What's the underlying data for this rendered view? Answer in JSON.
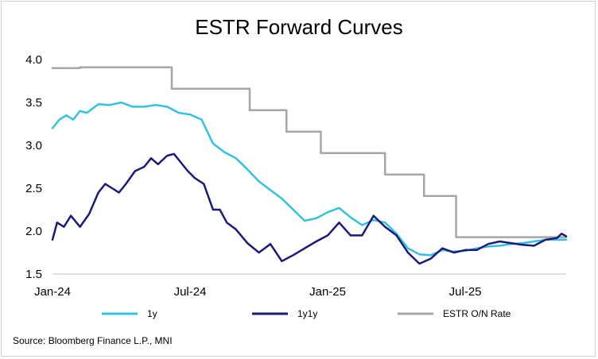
{
  "chart_data": {
    "type": "line",
    "title": "ESTR Forward Curves",
    "xlabel": "",
    "ylabel": "",
    "ylim": [
      1.5,
      4.0
    ],
    "y_ticks": [
      1.5,
      2.0,
      2.5,
      3.0,
      3.5,
      4.0
    ],
    "y_tick_labels": [
      "1.5",
      "2.0",
      "2.5",
      "3.0",
      "3.5",
      "4.0"
    ],
    "x_ticks": [
      0,
      6,
      12,
      18
    ],
    "x_tick_labels": [
      "Jan-24",
      "Jul-24",
      "Jan-25",
      "Jul-25"
    ],
    "xlim": [
      0,
      22.4
    ],
    "grid": false,
    "legend_position": "bottom",
    "source": "Source: Bloomberg Finance L.P., MNI",
    "series": [
      {
        "name": "1y",
        "color": "#33c1e1",
        "x": [
          0,
          0.3,
          0.6,
          0.9,
          1.2,
          1.5,
          2,
          2.5,
          3,
          3.5,
          4,
          4.5,
          5,
          5.5,
          6,
          6.5,
          7,
          7.5,
          8,
          8.5,
          9,
          9.5,
          10,
          10.5,
          11,
          11.5,
          12,
          12.5,
          13,
          13.5,
          14,
          14.5,
          15,
          15.5,
          16,
          16.5,
          17,
          17.5,
          18,
          18.5,
          19,
          19.5,
          20,
          20.5,
          21,
          21.5,
          22,
          22.4
        ],
        "values": [
          3.2,
          3.3,
          3.35,
          3.3,
          3.4,
          3.38,
          3.48,
          3.47,
          3.5,
          3.45,
          3.45,
          3.47,
          3.45,
          3.38,
          3.36,
          3.3,
          3.02,
          2.92,
          2.85,
          2.72,
          2.58,
          2.48,
          2.38,
          2.25,
          2.12,
          2.15,
          2.22,
          2.27,
          2.16,
          2.07,
          2.13,
          2.1,
          1.97,
          1.8,
          1.73,
          1.72,
          1.78,
          1.76,
          1.77,
          1.8,
          1.82,
          1.83,
          1.85,
          1.86,
          1.88,
          1.9,
          1.9,
          1.9
        ]
      },
      {
        "name": "1y1y",
        "color": "#1a1a7a",
        "x": [
          0,
          0.2,
          0.5,
          0.8,
          1.2,
          1.6,
          2,
          2.3,
          2.6,
          2.9,
          3.2,
          3.6,
          4,
          4.3,
          4.6,
          5,
          5.3,
          5.6,
          5.9,
          6.2,
          6.6,
          7,
          7.3,
          7.6,
          8,
          8.5,
          9,
          9.5,
          10,
          10.5,
          11,
          11.5,
          12,
          12.5,
          13,
          13.5,
          14,
          14.5,
          15,
          15.5,
          16,
          16.5,
          17,
          17.5,
          18,
          18.5,
          19,
          19.5,
          20,
          20.5,
          21,
          21.5,
          22,
          22.2,
          22.4
        ],
        "values": [
          1.9,
          2.1,
          2.05,
          2.18,
          2.05,
          2.2,
          2.45,
          2.55,
          2.5,
          2.45,
          2.55,
          2.7,
          2.75,
          2.85,
          2.78,
          2.88,
          2.9,
          2.8,
          2.7,
          2.62,
          2.55,
          2.25,
          2.25,
          2.1,
          2.02,
          1.86,
          1.75,
          1.85,
          1.65,
          1.72,
          1.8,
          1.88,
          1.95,
          2.1,
          1.95,
          1.95,
          2.18,
          2.05,
          1.95,
          1.75,
          1.62,
          1.68,
          1.8,
          1.75,
          1.78,
          1.78,
          1.85,
          1.88,
          1.86,
          1.84,
          1.83,
          1.9,
          1.92,
          1.97,
          1.94
        ]
      },
      {
        "name": "ESTR O/N Rate",
        "color": "#a6a6a6",
        "step": true,
        "x": [
          0,
          1.2,
          5.2,
          8.6,
          10.2,
          11.7,
          14.5,
          16.2,
          17.6,
          22.4
        ],
        "values": [
          3.9,
          3.91,
          3.66,
          3.41,
          3.16,
          2.91,
          2.66,
          2.41,
          1.93,
          1.93
        ]
      }
    ]
  }
}
